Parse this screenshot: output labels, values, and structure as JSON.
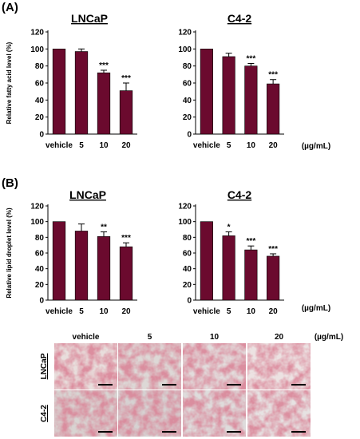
{
  "panel_labels": {
    "a": "(A)",
    "b": "(B)"
  },
  "unit_label": "(µg/mL)",
  "bar_color": "#6b0a2e",
  "chart_data": [
    {
      "type": "bar",
      "panel": "(A)",
      "title": "LNCaP",
      "ylabel": "Relative fatty acid level (%)",
      "categories": [
        "vehicle",
        "5",
        "10",
        "20"
      ],
      "values": [
        100,
        97,
        72,
        51
      ],
      "errors": [
        0,
        3,
        3,
        9
      ],
      "significance": [
        "",
        "",
        "***",
        "***"
      ],
      "ylim": [
        0,
        120
      ],
      "yticks": [
        0,
        20,
        40,
        60,
        80,
        100,
        120
      ]
    },
    {
      "type": "bar",
      "panel": "(A)",
      "title": "C4-2",
      "ylabel": "",
      "categories": [
        "vehicle",
        "5",
        "10",
        "20"
      ],
      "values": [
        100,
        91,
        80,
        59
      ],
      "errors": [
        0,
        4,
        3,
        5
      ],
      "significance": [
        "",
        "",
        "***",
        "***"
      ],
      "ylim": [
        0,
        120
      ],
      "yticks": [
        0,
        20,
        40,
        60,
        80,
        100,
        120
      ]
    },
    {
      "type": "bar",
      "panel": "(B)",
      "title": "LNCaP",
      "ylabel": "Relative lipid droplet level (%)",
      "categories": [
        "vehicle",
        "5",
        "10",
        "20"
      ],
      "values": [
        100,
        88,
        81,
        68
      ],
      "errors": [
        0,
        9,
        6,
        5
      ],
      "significance": [
        "",
        "",
        "**",
        "***"
      ],
      "ylim": [
        0,
        120
      ],
      "yticks": [
        0,
        20,
        40,
        60,
        80,
        100,
        120
      ]
    },
    {
      "type": "bar",
      "panel": "(B)",
      "title": "C4-2",
      "ylabel": "",
      "categories": [
        "vehicle",
        "5",
        "10",
        "20"
      ],
      "values": [
        100,
        82,
        64,
        56
      ],
      "errors": [
        0,
        5,
        5,
        3
      ],
      "significance": [
        "",
        "*",
        "***",
        "***"
      ],
      "ylim": [
        0,
        120
      ],
      "yticks": [
        0,
        20,
        40,
        60,
        80,
        100,
        120
      ]
    }
  ],
  "micrographs": {
    "columns": [
      "vehicle",
      "5",
      "10",
      "20"
    ],
    "rows": [
      "LNCaP",
      "C4-2"
    ],
    "unit_label": "(µg/mL)"
  }
}
